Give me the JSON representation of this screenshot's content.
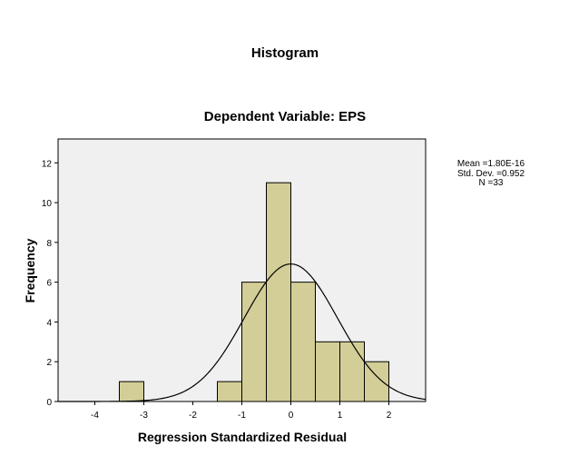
{
  "colors": {
    "plot_background": "#f0f0f0",
    "bar_fill": "#d3ce97",
    "bar_stroke": "#000000",
    "curve": "#000000"
  },
  "chart_data": {
    "type": "bar",
    "title": "Histogram",
    "subtitle": "Dependent Variable: EPS",
    "xlabel": "Regression Standardized Residual",
    "ylabel": "Frequency",
    "xlim": [
      -4.75,
      2.75
    ],
    "ylim": [
      0,
      13.2
    ],
    "xticks": [
      -4,
      -3,
      -2,
      -1,
      0,
      1,
      2
    ],
    "yticks": [
      0,
      2,
      4,
      6,
      8,
      10,
      12
    ],
    "grid": false,
    "bins": [
      {
        "x0": -3.5,
        "x1": -3.0,
        "count": 1
      },
      {
        "x0": -1.5,
        "x1": -1.0,
        "count": 1
      },
      {
        "x0": -1.0,
        "x1": -0.5,
        "count": 6
      },
      {
        "x0": -0.5,
        "x1": 0.0,
        "count": 11
      },
      {
        "x0": 0.0,
        "x1": 0.5,
        "count": 6
      },
      {
        "x0": 0.5,
        "x1": 1.0,
        "count": 3
      },
      {
        "x0": 1.0,
        "x1": 1.5,
        "count": 3
      },
      {
        "x0": 1.5,
        "x1": 2.0,
        "count": 2
      }
    ],
    "normal_curve": {
      "mean": 0.0,
      "std": 0.952,
      "n": 33,
      "bin_width": 0.5
    },
    "stats": {
      "mean": "Mean =1.80E-16",
      "std_dev": "Std. Dev. =0.952",
      "n": "N =33"
    }
  }
}
